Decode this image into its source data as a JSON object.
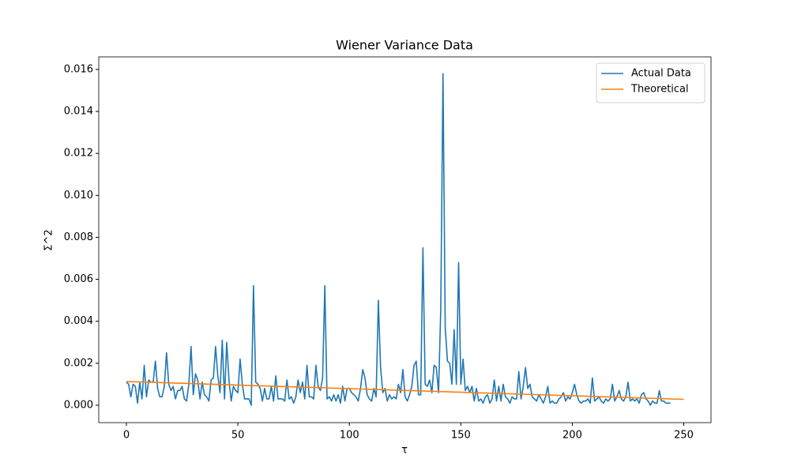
{
  "chart_data": {
    "type": "line",
    "title": "Wiener Variance Data",
    "xlabel": "τ",
    "ylabel": "Σ^2",
    "xlim": [
      -12.4,
      262.2
    ],
    "xticks": [
      0,
      50,
      100,
      150,
      200,
      250
    ],
    "ylim": [
      -0.00083,
      0.0166
    ],
    "yticks": [
      {
        "value": 0,
        "label": "0.000"
      },
      {
        "value": 0.002,
        "label": "0.002"
      },
      {
        "value": 0.004,
        "label": "0.004"
      },
      {
        "value": 0.006,
        "label": "0.006"
      },
      {
        "value": 0.008,
        "label": "0.008"
      },
      {
        "value": 0.01,
        "label": "0.010"
      },
      {
        "value": 0.012,
        "label": "0.012"
      },
      {
        "value": 0.014,
        "label": "0.014"
      },
      {
        "value": 0.016,
        "label": "0.016"
      }
    ],
    "legend": "upper right",
    "series": [
      {
        "name": "Actual Data",
        "color": "#1f77b4",
        "x": [
          0,
          1,
          2,
          3,
          4,
          5,
          6,
          7,
          8,
          9,
          10,
          11,
          12,
          13,
          14,
          15,
          16,
          17,
          18,
          19,
          20,
          21,
          22,
          23,
          24,
          25,
          26,
          27,
          28,
          29,
          30,
          31,
          32,
          33,
          34,
          35,
          36,
          37,
          38,
          39,
          40,
          41,
          42,
          43,
          44,
          45,
          46,
          47,
          48,
          49,
          50,
          51,
          52,
          53,
          54,
          55,
          56,
          57,
          58,
          59,
          60,
          61,
          62,
          63,
          64,
          65,
          66,
          67,
          68,
          69,
          70,
          71,
          72,
          73,
          74,
          75,
          76,
          77,
          78,
          79,
          80,
          81,
          82,
          83,
          84,
          85,
          86,
          87,
          88,
          89,
          90,
          91,
          92,
          93,
          94,
          95,
          96,
          97,
          98,
          99,
          100,
          101,
          102,
          103,
          104,
          105,
          106,
          107,
          108,
          109,
          110,
          111,
          112,
          113,
          114,
          115,
          116,
          117,
          118,
          119,
          120,
          121,
          122,
          123,
          124,
          125,
          126,
          127,
          128,
          129,
          130,
          131,
          132,
          133,
          134,
          135,
          136,
          137,
          138,
          139,
          140,
          141,
          142,
          143,
          144,
          145,
          146,
          147,
          148,
          149,
          150,
          151,
          152,
          153,
          154,
          155,
          156,
          157,
          158,
          159,
          160,
          161,
          162,
          163,
          164,
          165,
          166,
          167,
          168,
          169,
          170,
          171,
          172,
          173,
          174,
          175,
          176,
          177,
          178,
          179,
          180,
          181,
          182,
          183,
          184,
          185,
          186,
          187,
          188,
          189,
          190,
          191,
          192,
          193,
          194,
          195,
          196,
          197,
          198,
          199,
          200,
          201,
          202,
          203,
          204,
          205,
          206,
          207,
          208,
          209,
          210,
          211,
          212,
          213,
          214,
          215,
          216,
          217,
          218,
          219,
          220,
          221,
          222,
          223,
          224,
          225,
          226,
          227,
          228,
          229,
          230,
          231,
          232,
          233,
          234,
          235,
          236,
          237,
          238,
          239,
          240,
          241,
          242,
          243,
          244
        ],
        "values": [
          0.0011,
          0.001,
          0.0004,
          0.001,
          0.0009,
          0.0001,
          0.0011,
          0.0003,
          0.0019,
          0.0004,
          0.0012,
          0.0011,
          0.0011,
          0.0021,
          0.0008,
          0.0004,
          0.0004,
          0.0009,
          0.0025,
          0.001,
          0.0007,
          0.0009,
          0.0003,
          0.0007,
          0.0007,
          0.0009,
          0.0003,
          0.0002,
          0.001,
          0.0028,
          0.0005,
          0.0015,
          0.0012,
          0.0003,
          0.0011,
          0.0005,
          0.0004,
          0.0002,
          0.0012,
          0.0013,
          0.0028,
          0.0014,
          0.0006,
          0.0031,
          0.0003,
          0.003,
          0.0012,
          0.0002,
          0.0009,
          0.0007,
          0.0006,
          0.0022,
          0.001,
          0.0003,
          0.0003,
          0.0003,
          0.0,
          0.0057,
          0.0011,
          0.001,
          0.0008,
          0.0002,
          0.0008,
          0.0003,
          0.0003,
          0.0009,
          0.0002,
          0.0014,
          0.0003,
          0.0003,
          0.0003,
          0.0002,
          0.0012,
          0.0003,
          0.0004,
          0.0001,
          0.0004,
          0.0012,
          0.0006,
          0.0011,
          0.0003,
          0.0019,
          0.0004,
          0.0004,
          0.0003,
          0.0019,
          0.0009,
          0.0007,
          0.0013,
          0.0057,
          0.0003,
          0.0004,
          0.0002,
          0.0005,
          0.0002,
          0.0005,
          0.0001,
          0.0009,
          0.0002,
          0.0008,
          0.0008,
          0.0006,
          0.0005,
          0.0004,
          0.0002,
          0.0008,
          0.0017,
          0.0013,
          0.0005,
          0.0003,
          0.0002,
          0.0008,
          0.0004,
          0.005,
          0.0018,
          0.0006,
          0.0008,
          0.0002,
          0.0005,
          0.0003,
          0.0004,
          0.0003,
          0.001,
          0.0006,
          0.0017,
          0.0004,
          0.0002,
          0.0005,
          0.0009,
          0.0019,
          0.0021,
          0.0005,
          0.0005,
          0.0075,
          0.001,
          0.0009,
          0.0012,
          0.0006,
          0.0019,
          0.0018,
          0.0006,
          0.0046,
          0.0158,
          0.0037,
          0.0021,
          0.002,
          0.001,
          0.0036,
          0.001,
          0.0068,
          0.001,
          0.0022,
          0.0007,
          0.0009,
          0.0006,
          0.0009,
          0.0002,
          0.0008,
          0.0002,
          0.0003,
          0.0001,
          0.0004,
          0.0005,
          0.0001,
          0.0003,
          0.0012,
          0.0002,
          0.0009,
          0.0002,
          0.001,
          0.0004,
          0.0003,
          0.0001,
          0.0004,
          0.0003,
          0.0003,
          0.0016,
          0.0003,
          0.0009,
          0.0018,
          0.0008,
          0.001,
          0.0004,
          0.0003,
          0.0002,
          0.0005,
          0.0003,
          0.0001,
          0.0004,
          0.0009,
          0.0001,
          0.0002,
          0.0001,
          0.0001,
          0.0003,
          0.0004,
          0.0006,
          0.0002,
          0.0004,
          0.0003,
          0.0006,
          0.001,
          0.0005,
          0.0002,
          0.0001,
          0.0002,
          0.0002,
          0.0003,
          0.0001,
          0.0013,
          0.0002,
          0.0003,
          0.0004,
          0.0002,
          0.0001,
          0.0003,
          0.0002,
          0.0003,
          0.001,
          0.0002,
          0.0004,
          0.0007,
          0.0003,
          0.0002,
          0.0004,
          0.0011,
          0.0002,
          0.0003,
          0.0002,
          0.0003,
          0.0001,
          0.0005,
          0.0006,
          0.0003,
          0.0002,
          0.0,
          0.0002,
          0.0001,
          0.0001,
          0.0007,
          0.0002,
          0.0002,
          0.0001,
          0.0001,
          0.0001
        ]
      },
      {
        "name": "Theoretical",
        "color": "#ff7f0e",
        "x": [
          0,
          250
        ],
        "values": [
          0.00113,
          0.00028
        ]
      }
    ]
  }
}
